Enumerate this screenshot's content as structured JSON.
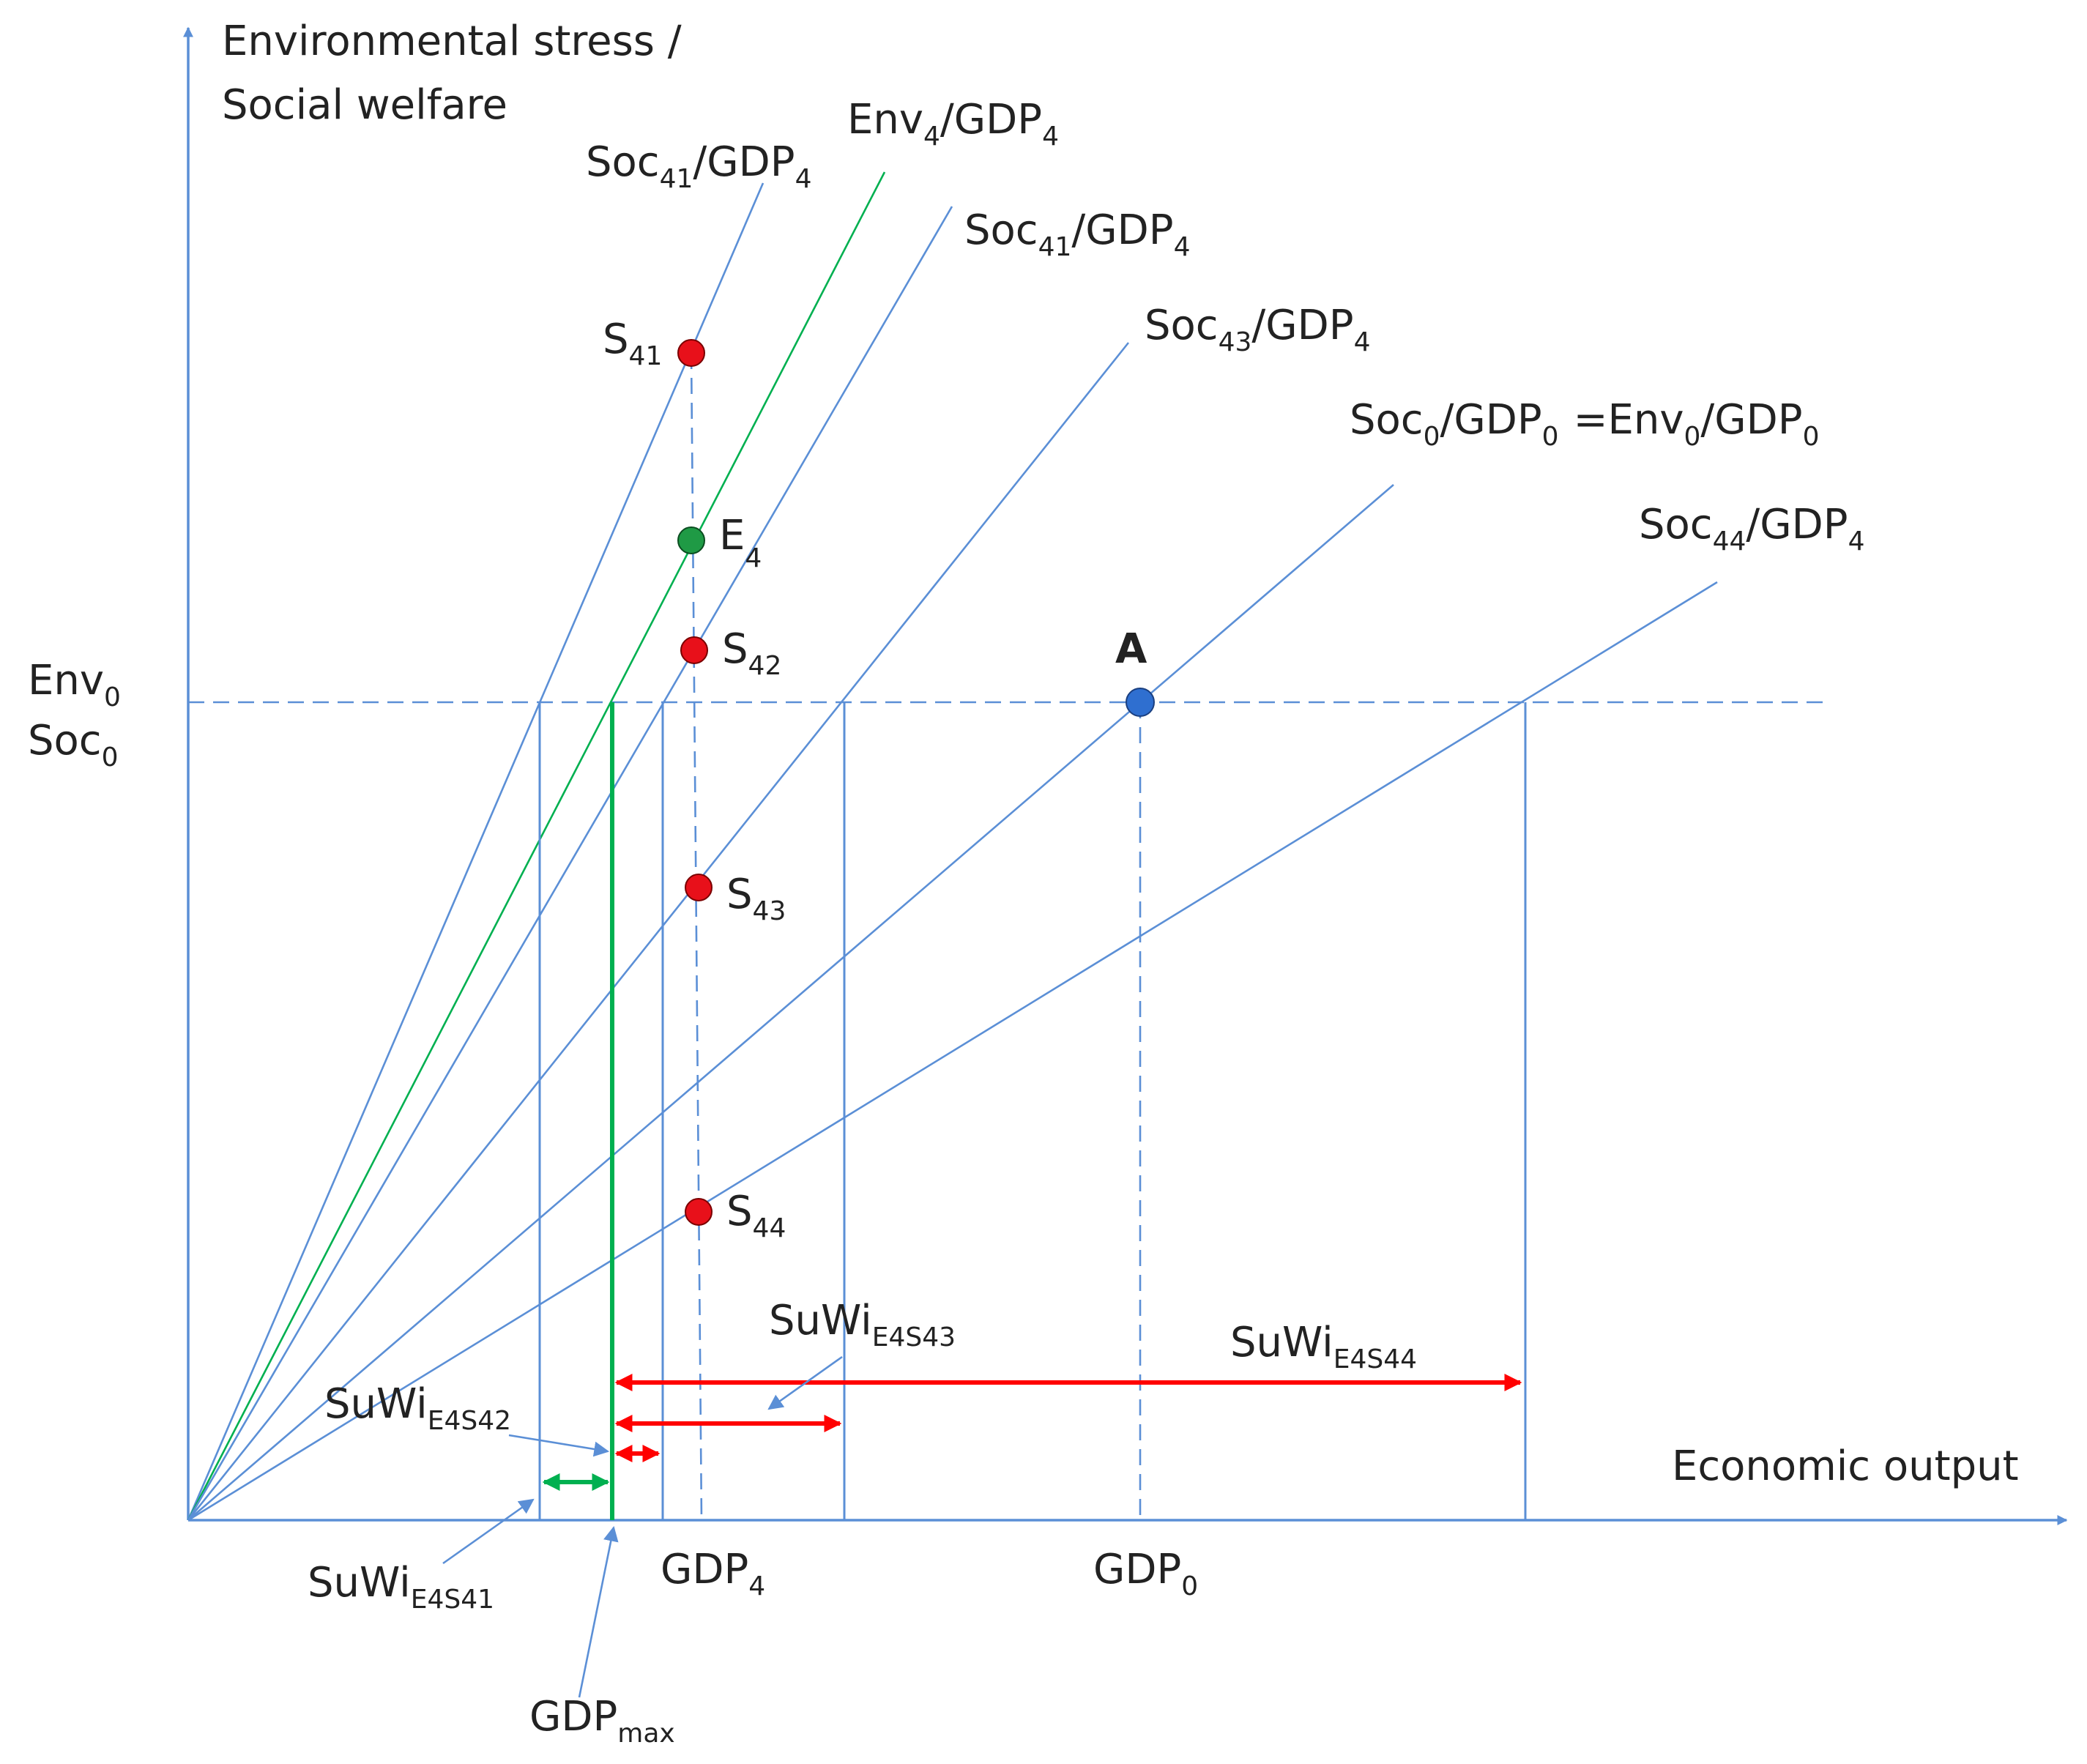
{
  "colors": {
    "blue": "#5b8fd6",
    "green": "#00b050",
    "red": "#ff0000",
    "point_red": "#e8101a",
    "point_green": "#1f9a45",
    "point_blue": "#2f6fd0",
    "text": "#222222"
  },
  "axes": {
    "y_label_line1": "Environmental stress /",
    "y_label_line2": "Social welfare",
    "x_label": "Economic output",
    "env0": {
      "main": "Env",
      "sub": "0"
    },
    "soc0": {
      "main": "Soc",
      "sub": "0"
    }
  },
  "line_labels": {
    "soc41_left": {
      "a": "Soc",
      "a_sub": "41",
      "b": "/GDP",
      "b_sub": "4"
    },
    "env4": {
      "a": "Env",
      "a_sub": "4",
      "b": "/GDP",
      "b_sub": "4"
    },
    "soc41_right": {
      "a": "Soc",
      "a_sub": "41",
      "b": "/GDP",
      "b_sub": "4"
    },
    "soc43": {
      "a": "Soc",
      "a_sub": "43",
      "b": "/GDP",
      "b_sub": "4"
    },
    "soc0_env0": {
      "a": "Soc",
      "a_sub": "0",
      "b": "/GDP",
      "b_sub": "0",
      "c": "=Env",
      "c_sub": "0",
      "d": "/GDP",
      "d_sub": "0"
    },
    "soc44": {
      "a": "Soc",
      "a_sub": "44",
      "b": "/GDP",
      "b_sub": "4"
    }
  },
  "points": {
    "s41": {
      "main": "S",
      "sub": "41"
    },
    "e4": {
      "main": "E",
      "sub": "4"
    },
    "s42": {
      "main": "S",
      "sub": "42"
    },
    "s43": {
      "main": "S",
      "sub": "43"
    },
    "s44": {
      "main": "S",
      "sub": "44"
    },
    "a": {
      "main": "A"
    }
  },
  "x_labels": {
    "gdp4": {
      "main": "GDP",
      "sub": "4"
    },
    "gdp0": {
      "main": "GDP",
      "sub": "0"
    },
    "gdpmax": {
      "main": "GDP",
      "sub": "max"
    }
  },
  "suwi": {
    "e4s41": {
      "main": "SuWi",
      "sub": "E4S41"
    },
    "e4s42": {
      "main": "SuWi",
      "sub": "E4S42"
    },
    "e4s43": {
      "main": "SuWi",
      "sub": "E4S43"
    },
    "e4s44": {
      "main": "SuWi",
      "sub": "E4S44"
    }
  }
}
